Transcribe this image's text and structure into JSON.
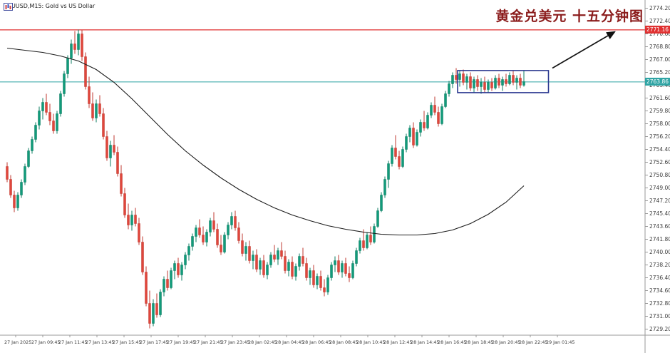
{
  "window": {
    "title": "XAUUSD,M15: Gold vs US Dollar"
  },
  "annotation": {
    "text": "黄金兑美元 十五分钟图",
    "color": "#8b1c1c"
  },
  "price_labels": {
    "resistance": "2771.16",
    "current": "2763.86"
  },
  "colors": {
    "bull": "#119b7a",
    "bull_stroke": "#0c7d62",
    "bear": "#e0463c",
    "bear_stroke": "#bf3a31",
    "ma": "#1c1c1c",
    "resistance_line": "#e03131",
    "current_line": "#2fa4a4",
    "box": "#2b3990",
    "arrow": "#111111",
    "axis": "#9a9a9a",
    "axis_text": "#3c3c3c",
    "tag_resistance_bg": "#e03131",
    "tag_current_bg": "#2fa4a4"
  },
  "chart_data": {
    "type": "candlestick",
    "symbol": "XAUUSD",
    "timeframe": "M15",
    "title": "XAUUSD,M15: Gold vs US Dollar",
    "ylim": [
      2729.2,
      2774.2
    ],
    "grid": false,
    "y_ticks": [
      "2774.20",
      "2772.40",
      "2770.60",
      "2768.80",
      "2767.00",
      "2765.20",
      "2763.40",
      "2761.60",
      "2759.80",
      "2758.00",
      "2756.20",
      "2754.40",
      "2752.60",
      "2750.80",
      "2749.00",
      "2747.20",
      "2745.40",
      "2743.60",
      "2741.80",
      "2740.00",
      "2738.20",
      "2736.40",
      "2734.60",
      "2732.80",
      "2731.00",
      "2729.20"
    ],
    "x_labels": [
      "27 Jan 2025",
      "27 Jan 09:45",
      "27 Jan 11:45",
      "27 Jan 13:45",
      "27 Jan 15:45",
      "27 Jan 17:45",
      "27 Jan 19:45",
      "27 Jan 21:45",
      "27 Jan 23:45",
      "28 Jan 02:45",
      "28 Jan 04:45",
      "28 Jan 06:45",
      "28 Jan 08:45",
      "28 Jan 10:45",
      "28 Jan 12:45",
      "28 Jan 14:45",
      "28 Jan 16:45",
      "28 Jan 18:45",
      "28 Jan 20:45",
      "28 Jan 22:45",
      "29 Jan 01:45"
    ],
    "levels": {
      "resistance": 2771.16,
      "current": 2763.86
    },
    "highlight_box": {
      "start_index": 127,
      "end_index": 152.5,
      "price_top": 2765.46,
      "price_bottom": 2762.36
    },
    "arrow": {
      "from": {
        "i": 153,
        "p": 2765.8
      },
      "to": {
        "i": 170.5,
        "p": 2770.9
      }
    },
    "ma": [
      [
        0,
        2768.6
      ],
      [
        5,
        2768.3
      ],
      [
        10,
        2768.0
      ],
      [
        15,
        2767.5
      ],
      [
        20,
        2766.8
      ],
      [
        25,
        2765.6
      ],
      [
        30,
        2763.8
      ],
      [
        35,
        2761.5
      ],
      [
        40,
        2759.0
      ],
      [
        45,
        2756.5
      ],
      [
        50,
        2754.2
      ],
      [
        55,
        2752.2
      ],
      [
        60,
        2750.4
      ],
      [
        65,
        2748.8
      ],
      [
        70,
        2747.4
      ],
      [
        75,
        2746.2
      ],
      [
        80,
        2745.2
      ],
      [
        85,
        2744.4
      ],
      [
        90,
        2743.7
      ],
      [
        95,
        2743.2
      ],
      [
        100,
        2742.8
      ],
      [
        105,
        2742.5
      ],
      [
        110,
        2742.4
      ],
      [
        115,
        2742.4
      ],
      [
        120,
        2742.6
      ],
      [
        125,
        2743.1
      ],
      [
        130,
        2744.0
      ],
      [
        135,
        2745.3
      ],
      [
        140,
        2747.0
      ],
      [
        145,
        2749.3
      ]
    ],
    "candles": [
      [
        2752.0,
        2752.6,
        2749.8,
        2750.2
      ],
      [
        2750.2,
        2750.8,
        2747.6,
        2748.0
      ],
      [
        2748.0,
        2748.6,
        2745.6,
        2746.2
      ],
      [
        2746.2,
        2748.4,
        2745.8,
        2748.0
      ],
      [
        2748.0,
        2750.2,
        2747.6,
        2749.8
      ],
      [
        2749.8,
        2752.4,
        2749.4,
        2752.0
      ],
      [
        2752.0,
        2754.6,
        2751.8,
        2754.2
      ],
      [
        2754.2,
        2756.2,
        2753.8,
        2755.8
      ],
      [
        2755.8,
        2758.2,
        2755.4,
        2757.8
      ],
      [
        2757.8,
        2760.4,
        2757.2,
        2759.8
      ],
      [
        2759.8,
        2761.6,
        2758.6,
        2761.0
      ],
      [
        2761.0,
        2762.2,
        2759.2,
        2759.6
      ],
      [
        2759.6,
        2760.8,
        2757.8,
        2758.4
      ],
      [
        2758.4,
        2759.4,
        2756.6,
        2757.0
      ],
      [
        2757.0,
        2759.8,
        2756.6,
        2759.4
      ],
      [
        2759.4,
        2762.6,
        2759.0,
        2762.2
      ],
      [
        2762.2,
        2765.4,
        2761.8,
        2765.0
      ],
      [
        2765.0,
        2767.6,
        2764.4,
        2767.2
      ],
      [
        2767.2,
        2769.8,
        2766.4,
        2769.2
      ],
      [
        2769.2,
        2771.0,
        2767.8,
        2768.4
      ],
      [
        2768.4,
        2771.2,
        2767.6,
        2770.6
      ],
      [
        2770.6,
        2771.1,
        2766.8,
        2767.4
      ],
      [
        2767.4,
        2768.0,
        2762.8,
        2763.2
      ],
      [
        2763.2,
        2764.6,
        2760.2,
        2760.8
      ],
      [
        2760.8,
        2762.4,
        2758.4,
        2758.8
      ],
      [
        2758.8,
        2761.4,
        2758.2,
        2760.8
      ],
      [
        2760.8,
        2762.0,
        2759.0,
        2759.4
      ],
      [
        2759.4,
        2760.2,
        2755.8,
        2756.2
      ],
      [
        2756.2,
        2757.0,
        2752.8,
        2753.2
      ],
      [
        2753.2,
        2755.6,
        2752.0,
        2755.0
      ],
      [
        2755.0,
        2756.4,
        2753.6,
        2754.0
      ],
      [
        2754.0,
        2754.8,
        2750.6,
        2751.0
      ],
      [
        2751.0,
        2752.2,
        2747.8,
        2748.2
      ],
      [
        2748.2,
        2749.0,
        2744.8,
        2745.2
      ],
      [
        2745.2,
        2746.8,
        2743.2,
        2743.8
      ],
      [
        2743.8,
        2745.8,
        2743.0,
        2745.2
      ],
      [
        2745.2,
        2746.2,
        2743.6,
        2744.0
      ],
      [
        2744.0,
        2744.8,
        2741.0,
        2741.4
      ],
      [
        2741.4,
        2742.2,
        2736.8,
        2737.2
      ],
      [
        2737.2,
        2738.0,
        2732.4,
        2732.8
      ],
      [
        2732.8,
        2734.6,
        2729.3,
        2730.0
      ],
      [
        2730.0,
        2733.4,
        2729.6,
        2732.8
      ],
      [
        2732.8,
        2734.2,
        2730.8,
        2731.2
      ],
      [
        2731.2,
        2734.8,
        2730.9,
        2734.4
      ],
      [
        2734.4,
        2736.6,
        2733.8,
        2736.2
      ],
      [
        2736.2,
        2737.4,
        2734.6,
        2735.0
      ],
      [
        2735.0,
        2737.8,
        2734.8,
        2737.4
      ],
      [
        2737.4,
        2738.8,
        2736.2,
        2738.4
      ],
      [
        2738.4,
        2739.2,
        2736.4,
        2736.8
      ],
      [
        2736.8,
        2738.6,
        2736.0,
        2738.2
      ],
      [
        2738.2,
        2740.0,
        2737.6,
        2739.6
      ],
      [
        2739.6,
        2741.2,
        2738.8,
        2740.8
      ],
      [
        2740.8,
        2742.6,
        2740.2,
        2742.2
      ],
      [
        2742.2,
        2743.8,
        2741.4,
        2743.4
      ],
      [
        2743.4,
        2744.6,
        2742.0,
        2742.4
      ],
      [
        2742.4,
        2743.6,
        2741.0,
        2741.4
      ],
      [
        2741.4,
        2743.2,
        2740.8,
        2742.8
      ],
      [
        2742.8,
        2744.8,
        2742.2,
        2744.4
      ],
      [
        2744.4,
        2745.6,
        2742.8,
        2743.2
      ],
      [
        2743.2,
        2744.0,
        2740.6,
        2741.0
      ],
      [
        2741.0,
        2742.4,
        2739.6,
        2740.0
      ],
      [
        2740.0,
        2742.8,
        2739.8,
        2742.4
      ],
      [
        2742.4,
        2744.2,
        2741.8,
        2743.8
      ],
      [
        2743.8,
        2745.6,
        2743.2,
        2745.0
      ],
      [
        2745.0,
        2745.8,
        2743.0,
        2743.4
      ],
      [
        2743.4,
        2744.2,
        2741.2,
        2741.6
      ],
      [
        2741.6,
        2742.6,
        2739.4,
        2739.8
      ],
      [
        2739.8,
        2741.4,
        2738.8,
        2740.8
      ],
      [
        2740.8,
        2741.6,
        2738.4,
        2738.8
      ],
      [
        2738.8,
        2740.2,
        2737.6,
        2739.6
      ],
      [
        2739.6,
        2740.4,
        2737.2,
        2737.6
      ],
      [
        2737.6,
        2739.2,
        2736.8,
        2738.8
      ],
      [
        2738.8,
        2739.6,
        2736.4,
        2736.8
      ],
      [
        2736.8,
        2738.6,
        2736.2,
        2738.2
      ],
      [
        2738.2,
        2740.0,
        2737.8,
        2739.6
      ],
      [
        2739.6,
        2741.0,
        2738.6,
        2739.0
      ],
      [
        2739.0,
        2740.6,
        2738.2,
        2740.2
      ],
      [
        2740.2,
        2741.4,
        2739.0,
        2739.4
      ],
      [
        2739.4,
        2740.2,
        2737.0,
        2737.4
      ],
      [
        2737.4,
        2739.0,
        2736.6,
        2738.6
      ],
      [
        2738.6,
        2739.4,
        2736.2,
        2736.6
      ],
      [
        2736.6,
        2738.4,
        2736.0,
        2738.0
      ],
      [
        2738.0,
        2739.8,
        2737.4,
        2739.4
      ],
      [
        2739.4,
        2740.6,
        2738.0,
        2738.4
      ],
      [
        2738.4,
        2739.2,
        2736.0,
        2736.4
      ],
      [
        2736.4,
        2737.8,
        2735.4,
        2737.4
      ],
      [
        2737.4,
        2738.2,
        2735.0,
        2735.4
      ],
      [
        2735.4,
        2737.0,
        2734.8,
        2736.6
      ],
      [
        2736.6,
        2737.4,
        2734.6,
        2735.0
      ],
      [
        2735.0,
        2736.2,
        2733.8,
        2734.4
      ],
      [
        2734.4,
        2736.8,
        2734.0,
        2736.4
      ],
      [
        2736.4,
        2738.6,
        2736.0,
        2738.2
      ],
      [
        2738.2,
        2739.4,
        2737.2,
        2738.8
      ],
      [
        2738.8,
        2739.6,
        2736.8,
        2737.2
      ],
      [
        2737.2,
        2738.8,
        2736.4,
        2738.4
      ],
      [
        2738.4,
        2739.2,
        2736.6,
        2737.0
      ],
      [
        2737.0,
        2738.0,
        2735.8,
        2736.4
      ],
      [
        2736.4,
        2738.8,
        2736.2,
        2738.4
      ],
      [
        2738.4,
        2740.6,
        2738.0,
        2740.2
      ],
      [
        2740.2,
        2742.0,
        2739.8,
        2741.6
      ],
      [
        2741.6,
        2743.2,
        2740.2,
        2740.6
      ],
      [
        2740.6,
        2742.8,
        2740.4,
        2742.4
      ],
      [
        2742.4,
        2743.6,
        2741.0,
        2741.4
      ],
      [
        2741.4,
        2744.0,
        2741.2,
        2743.6
      ],
      [
        2743.6,
        2746.2,
        2743.4,
        2745.8
      ],
      [
        2745.8,
        2748.4,
        2745.6,
        2748.0
      ],
      [
        2748.0,
        2750.6,
        2747.6,
        2750.2
      ],
      [
        2750.2,
        2752.8,
        2749.0,
        2752.4
      ],
      [
        2752.4,
        2755.0,
        2752.0,
        2754.6
      ],
      [
        2754.6,
        2756.4,
        2753.0,
        2753.4
      ],
      [
        2753.4,
        2754.2,
        2751.6,
        2752.0
      ],
      [
        2752.0,
        2754.8,
        2751.8,
        2754.4
      ],
      [
        2754.4,
        2756.6,
        2754.0,
        2756.2
      ],
      [
        2756.2,
        2757.8,
        2755.4,
        2757.4
      ],
      [
        2757.4,
        2758.2,
        2754.6,
        2755.0
      ],
      [
        2755.0,
        2757.2,
        2754.8,
        2756.8
      ],
      [
        2756.8,
        2758.6,
        2756.2,
        2758.2
      ],
      [
        2758.2,
        2759.8,
        2757.0,
        2757.4
      ],
      [
        2757.4,
        2759.6,
        2757.2,
        2759.2
      ],
      [
        2759.2,
        2761.0,
        2758.8,
        2760.6
      ],
      [
        2760.6,
        2761.8,
        2759.2,
        2759.6
      ],
      [
        2759.6,
        2760.4,
        2757.6,
        2758.0
      ],
      [
        2758.0,
        2760.8,
        2757.8,
        2760.4
      ],
      [
        2760.4,
        2762.6,
        2760.2,
        2762.2
      ],
      [
        2762.2,
        2764.0,
        2761.8,
        2763.6
      ],
      [
        2763.6,
        2765.2,
        2763.0,
        2764.8
      ],
      [
        2764.8,
        2765.8,
        2763.6,
        2764.2
      ],
      [
        2764.2,
        2765.4,
        2763.2,
        2765.0
      ],
      [
        2765.0,
        2765.6,
        2763.4,
        2763.8
      ],
      [
        2763.8,
        2765.0,
        2762.8,
        2764.6
      ],
      [
        2764.6,
        2765.2,
        2762.6,
        2763.0
      ],
      [
        2763.0,
        2764.6,
        2762.4,
        2764.2
      ],
      [
        2764.2,
        2764.8,
        2762.6,
        2763.2
      ],
      [
        2763.2,
        2764.4,
        2762.2,
        2763.8
      ],
      [
        2763.8,
        2764.6,
        2762.4,
        2762.8
      ],
      [
        2762.8,
        2764.2,
        2762.3,
        2763.8
      ],
      [
        2763.8,
        2764.4,
        2762.6,
        2763.0
      ],
      [
        2763.0,
        2764.8,
        2762.8,
        2764.4
      ],
      [
        2764.4,
        2765.0,
        2763.0,
        2763.4
      ],
      [
        2763.4,
        2764.6,
        2762.6,
        2764.2
      ],
      [
        2764.2,
        2765.0,
        2763.2,
        2763.6
      ],
      [
        2763.6,
        2765.2,
        2763.4,
        2764.8
      ],
      [
        2764.8,
        2765.4,
        2763.4,
        2763.8
      ],
      [
        2763.8,
        2764.8,
        2762.8,
        2764.4
      ],
      [
        2764.4,
        2765.0,
        2763.0,
        2763.4
      ],
      [
        2763.4,
        2765.4,
        2763.2,
        2763.9
      ]
    ]
  }
}
